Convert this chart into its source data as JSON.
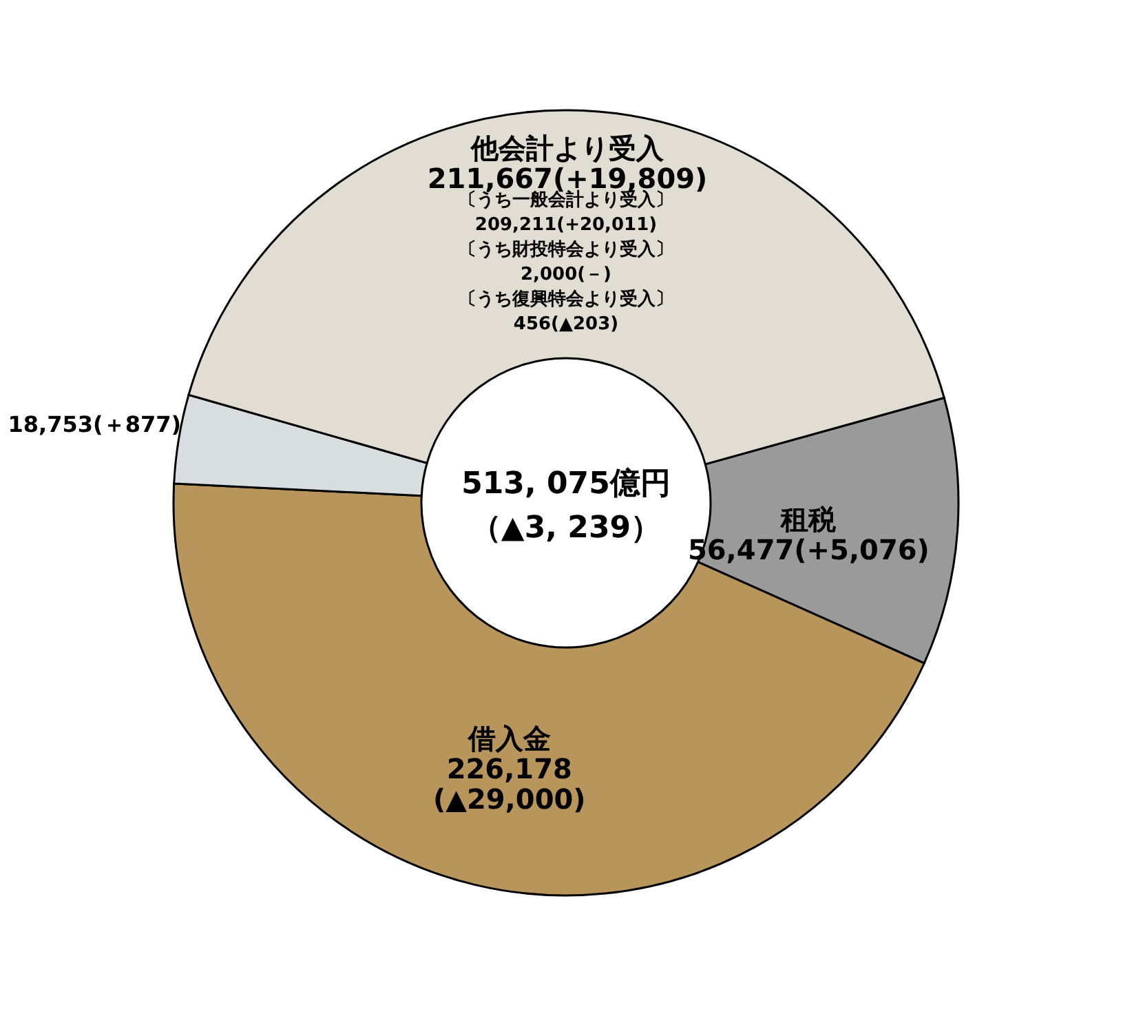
{
  "chart_data": {
    "type": "donut",
    "categories": [
      "租税",
      "借入金",
      null,
      "他会計より受入"
    ],
    "values": [
      56477,
      226178,
      18753,
      211667
    ],
    "value_labels": [
      "56,477(+5,076)",
      "226,178\n(▲29,000)",
      "18,753(＋877)",
      "211,667(+19,809)"
    ],
    "colors": [
      "#9a9a9a",
      "#b8955a",
      "#d8dde0",
      "#e2ddd2"
    ],
    "annotations": [
      "513, 075億円",
      "（▲3, 239）",
      "〔うち一般会計より受入〕",
      "209,211(+20,011)",
      "〔うち財投特会より受入〕",
      "2,000(－)",
      "〔うち復興特会より受入〕",
      "456(▲203)"
    ],
    "legend": false
  }
}
